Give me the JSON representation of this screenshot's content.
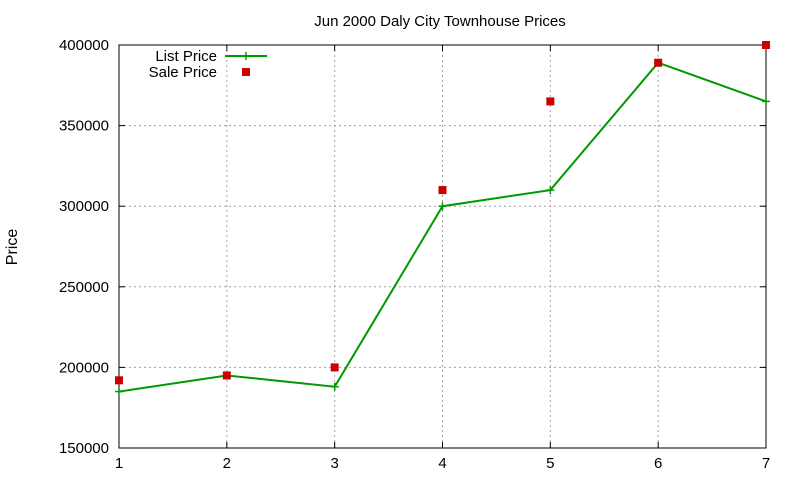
{
  "chart_data": {
    "type": "line",
    "title": "Jun 2000 Daly City Townhouse Prices",
    "xlabel": "",
    "ylabel": "Price",
    "xlim": [
      1,
      7
    ],
    "ylim": [
      150000,
      400000
    ],
    "x": [
      1,
      2,
      3,
      4,
      5,
      6,
      7
    ],
    "x_ticks": [
      "1",
      "2",
      "3",
      "4",
      "5",
      "6",
      "7"
    ],
    "y_ticks": [
      "150000",
      "200000",
      "250000",
      "300000",
      "350000",
      "400000"
    ],
    "y_tick_values": [
      150000,
      200000,
      250000,
      300000,
      350000,
      400000
    ],
    "grid": true,
    "legend_position": "top-left",
    "series": [
      {
        "name": "List Price",
        "style": "line-cross",
        "color": "#009900",
        "values": [
          185000,
          195000,
          188000,
          300000,
          310000,
          389000,
          365000
        ]
      },
      {
        "name": "Sale Price",
        "style": "square-points",
        "color": "#cc0000",
        "values": [
          192000,
          195000,
          200000,
          310000,
          365000,
          389000,
          400000
        ]
      }
    ]
  }
}
